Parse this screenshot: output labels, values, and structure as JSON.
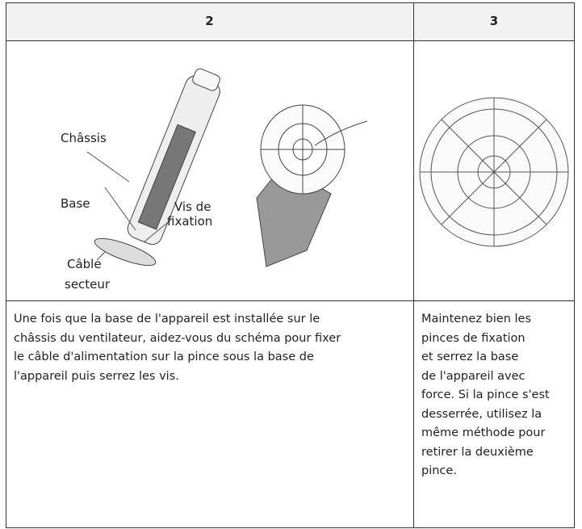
{
  "table": {
    "header": [
      "2",
      "3"
    ],
    "labels": [
      [
        "Châssis"
      ],
      [
        "Base"
      ],
      [
        "Vis de",
        "fixation"
      ],
      [
        "Câble",
        "secteur"
      ]
    ],
    "descriptions": [
      [
        "Une fois que la base de l'appareil est installée sur le",
        "châssis du ventilateur, aidez-vous du schéma pour fixer",
        "le câble d'alimentation sur la pince sous la base de",
        "l'appareil puis serrez les vis."
      ],
      [
        "Maintenez bien les",
        "pinces de fixation",
        "et serrez la base",
        "de l'appareil avec",
        "force. Si la pince s'est",
        "desserrée, utilisez la",
        "même méthode pour",
        "retirer la deuxième",
        "pince."
      ]
    ]
  }
}
